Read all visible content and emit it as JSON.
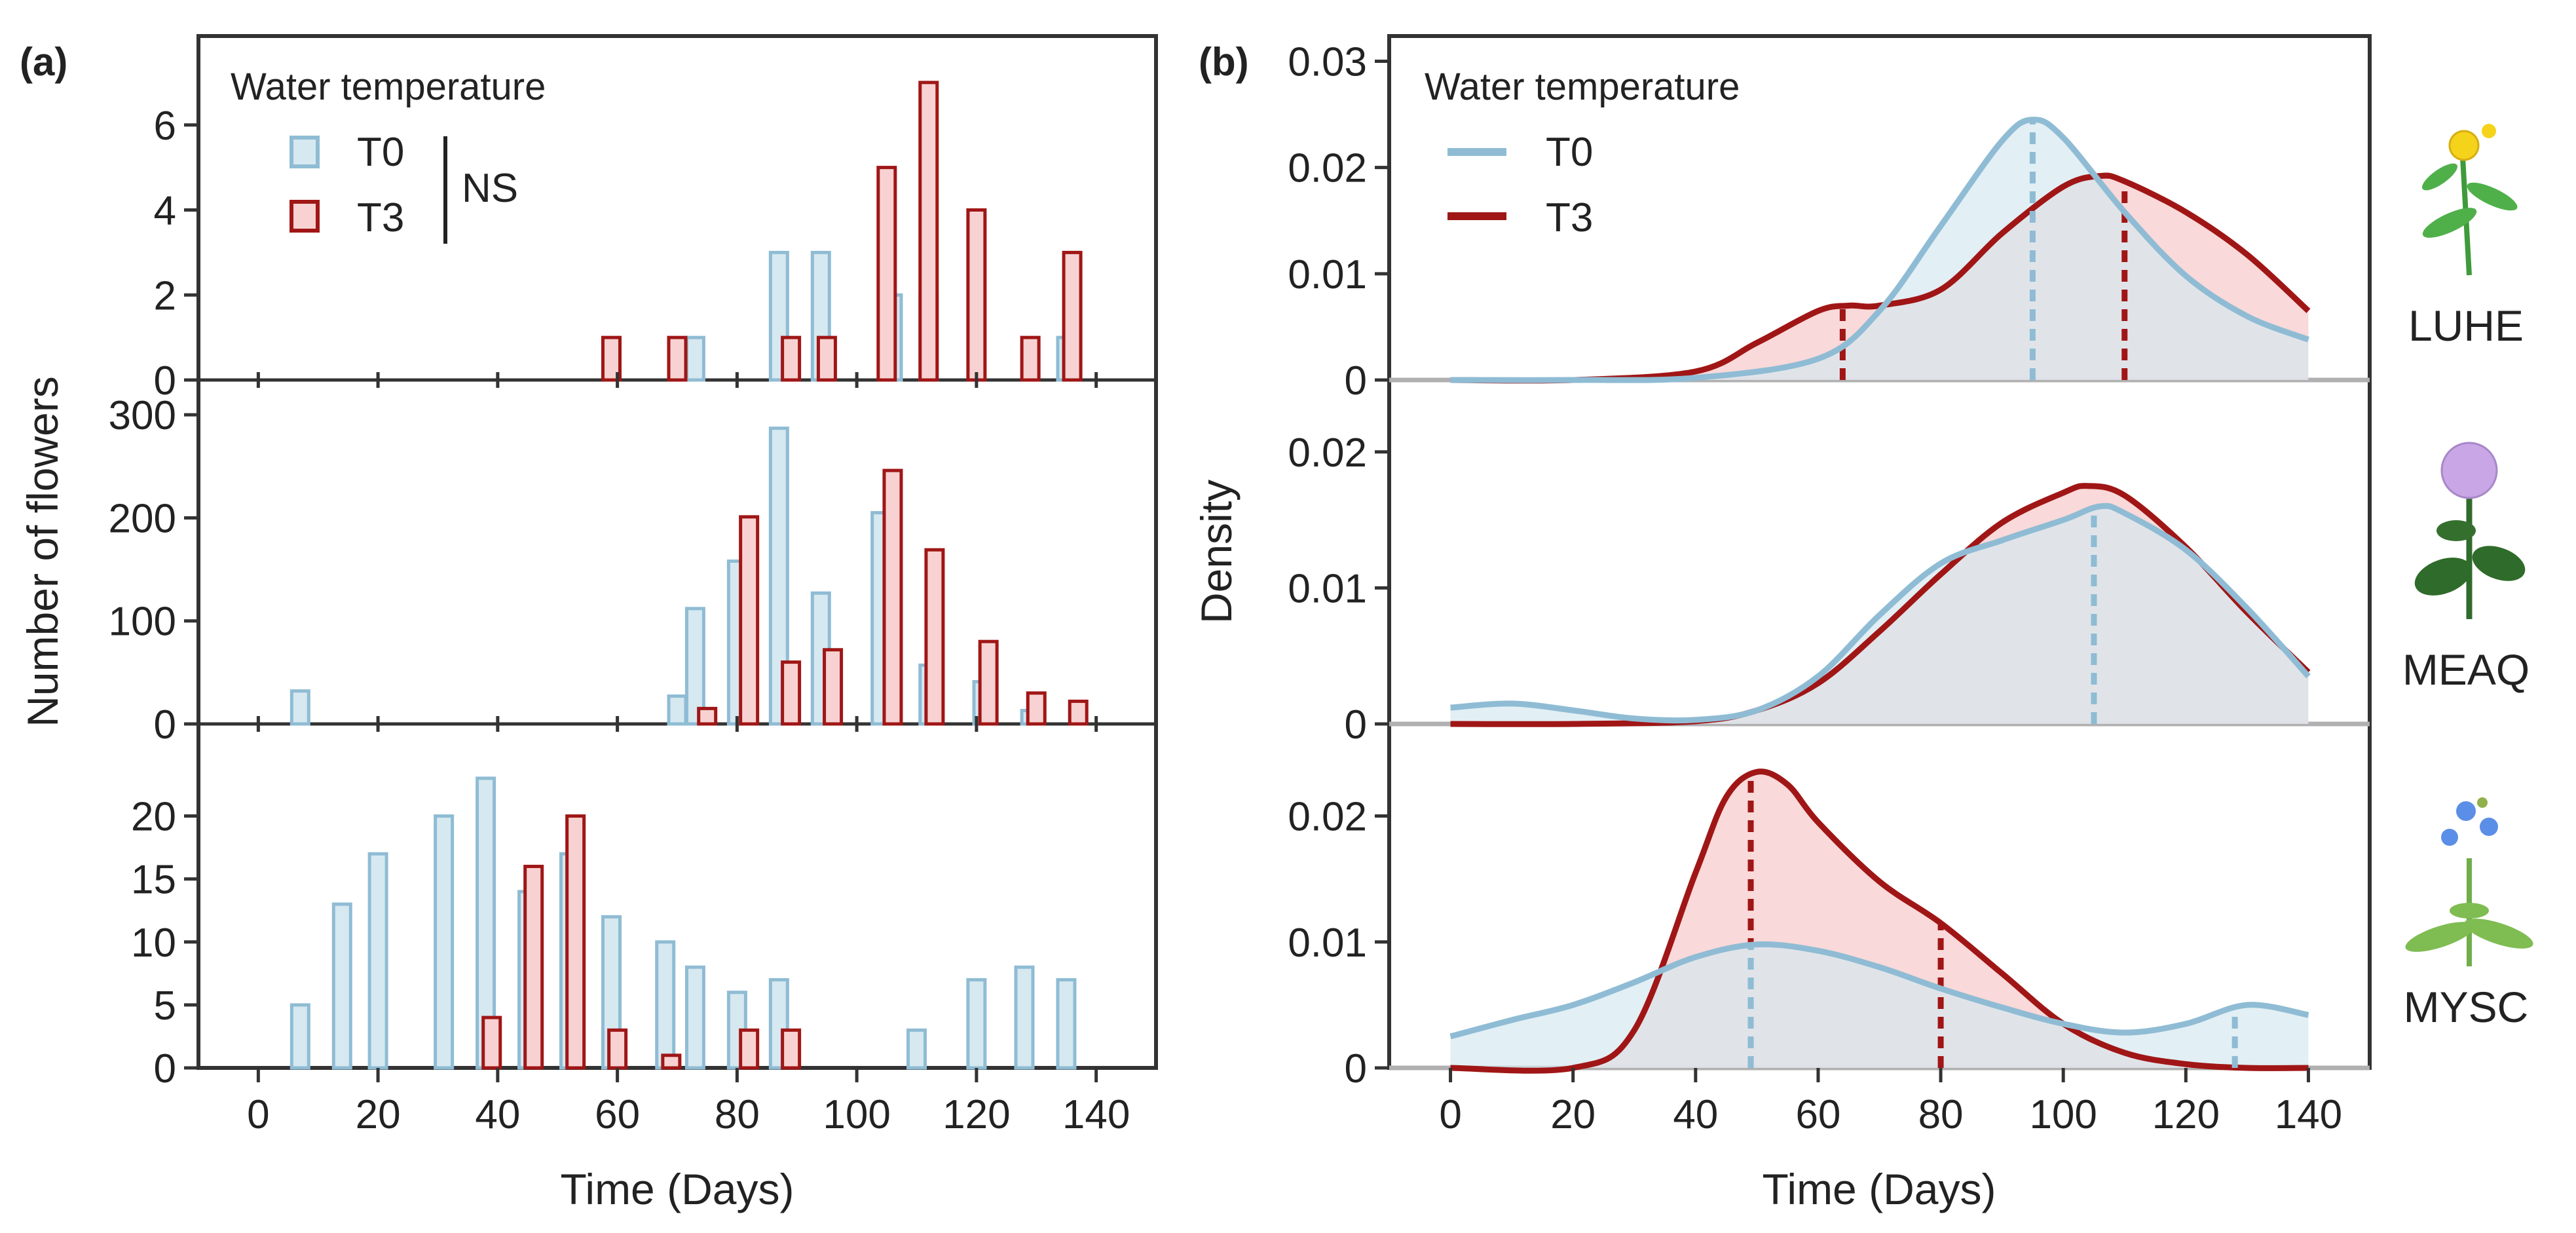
{
  "panels": {
    "a_tag": "(a)",
    "b_tag": "(b)"
  },
  "legend": {
    "title": "Water temperature",
    "t0": "T0",
    "t3": "T3",
    "significance": "NS"
  },
  "colors": {
    "t0_stroke": "#8fbcd4",
    "t0_fill": "#d6e8f0",
    "t3_stroke": "#a01616",
    "t3_fill": "#f8d2d2",
    "t0_line": "#8fbcd4",
    "t3_line": "#a01616"
  },
  "species": [
    "LUHE",
    "MEAQ",
    "MYSC"
  ],
  "chart_data": [
    {
      "type": "bar",
      "panel": "a",
      "xlabel": "Time (Days)",
      "ylabel": "Number of flowers",
      "xlim": [
        -10,
        150
      ],
      "x_ticks": [
        0,
        20,
        40,
        60,
        80,
        100,
        120,
        140
      ],
      "x_tick_labels": [
        "0",
        "20",
        "40",
        "60",
        "80",
        "100",
        "120",
        "140"
      ],
      "rows": [
        {
          "species": "LUHE",
          "ylim": [
            0,
            8
          ],
          "y_ticks": [
            0,
            2,
            4,
            6
          ],
          "y_tick_labels": [
            "0",
            "2",
            "4",
            "6"
          ],
          "series": [
            {
              "name": "T0",
              "x": [
                73,
                87,
                94,
                106,
                112,
                135
              ],
              "values": [
                1,
                3,
                3,
                2,
                2,
                1
              ]
            },
            {
              "name": "T3",
              "x": [
                59,
                70,
                89,
                95,
                105,
                112,
                120,
                129,
                136
              ],
              "values": [
                1,
                1,
                1,
                1,
                5,
                7,
                4,
                1,
                3
              ]
            }
          ]
        },
        {
          "species": "MEAQ",
          "ylim": [
            0,
            330
          ],
          "y_ticks": [
            0,
            100,
            200,
            300
          ],
          "y_tick_labels": [
            "0",
            "100",
            "200",
            "300"
          ],
          "series": [
            {
              "name": "T0",
              "x": [
                7,
                70,
                73,
                80,
                87,
                94,
                104,
                112,
                121,
                129
              ],
              "values": [
                32,
                27,
                112,
                158,
                287,
                127,
                205,
                57,
                41,
                13
              ]
            },
            {
              "name": "T3",
              "x": [
                75,
                82,
                89,
                96,
                106,
                113,
                122,
                130,
                137
              ],
              "values": [
                15,
                201,
                60,
                72,
                246,
                169,
                80,
                30,
                22
              ]
            }
          ]
        },
        {
          "species": "MYSC",
          "ylim": [
            0,
            27
          ],
          "y_ticks": [
            0,
            5,
            10,
            15,
            20
          ],
          "y_tick_labels": [
            "0",
            "5",
            "10",
            "15",
            "20"
          ],
          "series": [
            {
              "name": "T0",
              "x": [
                7,
                14,
                20,
                31,
                38,
                45,
                52,
                59,
                68,
                73,
                80,
                87,
                110,
                120,
                128,
                135
              ],
              "values": [
                5,
                13,
                17,
                20,
                23,
                14,
                17,
                12,
                10,
                8,
                6,
                7,
                3,
                7,
                8,
                7
              ]
            },
            {
              "name": "T3",
              "x": [
                39,
                46,
                53,
                60,
                69,
                82,
                89
              ],
              "values": [
                4,
                16,
                20,
                3,
                1,
                3,
                3
              ]
            }
          ]
        }
      ]
    },
    {
      "type": "area",
      "panel": "b",
      "xlabel": "Time (Days)",
      "ylabel": "Density",
      "xlim": [
        -10,
        150
      ],
      "x_ticks": [
        0,
        20,
        40,
        60,
        80,
        100,
        120,
        140
      ],
      "x_tick_labels": [
        "0",
        "20",
        "40",
        "60",
        "80",
        "100",
        "120",
        "140"
      ],
      "rows": [
        {
          "species": "LUHE",
          "ylim": [
            0,
            0.032
          ],
          "y_ticks": [
            0,
            0.01,
            0.02,
            0.03
          ],
          "y_tick_labels": [
            "0",
            "0.01",
            "0.02",
            "0.03"
          ],
          "series": [
            {
              "name": "T0",
              "x": [
                0,
                20,
                40,
                60,
                70,
                80,
                90,
                95,
                100,
                110,
                120,
                130,
                140
              ],
              "y": [
                0.0,
                0.0,
                0.0002,
                0.002,
                0.0065,
                0.0145,
                0.0225,
                0.0245,
                0.0228,
                0.0158,
                0.0098,
                0.006,
                0.0038
              ],
              "quantiles": [
                95
              ]
            },
            {
              "name": "T3",
              "x": [
                0,
                20,
                40,
                50,
                60,
                65,
                70,
                80,
                90,
                100,
                106,
                110,
                120,
                130,
                140
              ],
              "y": [
                0.0,
                0.0,
                0.0008,
                0.0035,
                0.0065,
                0.007,
                0.007,
                0.0085,
                0.0138,
                0.0182,
                0.0192,
                0.0187,
                0.0158,
                0.0118,
                0.0065
              ],
              "quantiles": [
                64,
                110
              ]
            }
          ]
        },
        {
          "species": "MEAQ",
          "ylim": [
            0,
            0.025
          ],
          "y_ticks": [
            0,
            0.01,
            0.02
          ],
          "y_tick_labels": [
            "0",
            "0.01",
            "0.02"
          ],
          "series": [
            {
              "name": "T0",
              "x": [
                0,
                10,
                20,
                30,
                40,
                50,
                60,
                70,
                80,
                90,
                100,
                106,
                110,
                120,
                130,
                140
              ],
              "y": [
                0.0012,
                0.0015,
                0.001,
                0.0004,
                0.0003,
                0.001,
                0.0035,
                0.008,
                0.0118,
                0.0135,
                0.015,
                0.016,
                0.0155,
                0.0128,
                0.0085,
                0.0035
              ],
              "quantiles": [
                105
              ]
            },
            {
              "name": "T3",
              "x": [
                0,
                20,
                40,
                50,
                60,
                70,
                80,
                90,
                100,
                104,
                110,
                120,
                130,
                140
              ],
              "y": [
                0.0,
                0.0,
                0.0002,
                0.001,
                0.003,
                0.0068,
                0.011,
                0.0148,
                0.017,
                0.0175,
                0.0168,
                0.013,
                0.0082,
                0.0038
              ],
              "quantiles": []
            }
          ]
        },
        {
          "species": "MYSC",
          "ylim": [
            0,
            0.027
          ],
          "y_ticks": [
            0,
            0.01,
            0.02
          ],
          "y_tick_labels": [
            "0",
            "0.01",
            "0.02"
          ],
          "series": [
            {
              "name": "T0",
              "x": [
                0,
                10,
                20,
                30,
                40,
                50,
                60,
                70,
                80,
                90,
                100,
                110,
                120,
                130,
                140
              ],
              "y": [
                0.0025,
                0.0038,
                0.005,
                0.0068,
                0.0088,
                0.0098,
                0.0093,
                0.008,
                0.0063,
                0.0048,
                0.0035,
                0.0028,
                0.0035,
                0.005,
                0.0042
              ],
              "quantiles": [
                49,
                128
              ]
            },
            {
              "name": "T3",
              "x": [
                0,
                20,
                30,
                40,
                45,
                50,
                55,
                60,
                70,
                80,
                90,
                100,
                110,
                120,
                130,
                140
              ],
              "y": [
                0.0,
                0.0,
                0.003,
                0.0155,
                0.0215,
                0.0235,
                0.0225,
                0.0195,
                0.0148,
                0.0115,
                0.0075,
                0.0035,
                0.0012,
                0.0003,
                0.0,
                0.0
              ],
              "quantiles": [
                49,
                80
              ]
            }
          ]
        }
      ]
    }
  ]
}
